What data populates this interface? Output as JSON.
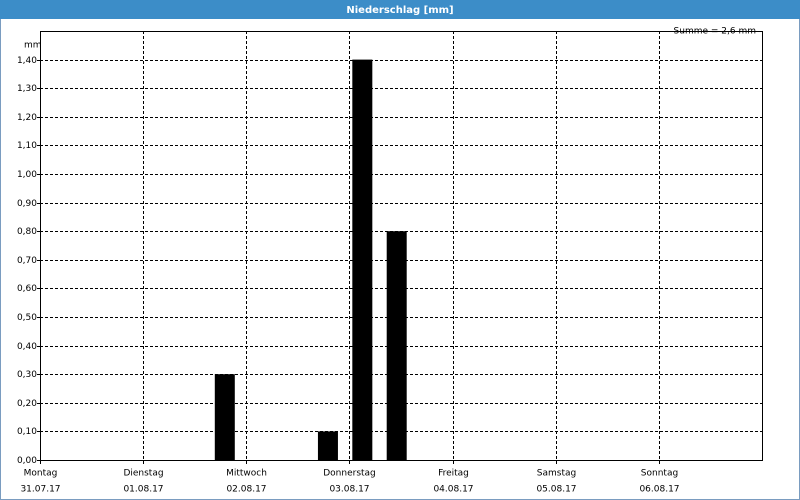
{
  "chart_data": {
    "type": "bar",
    "title": "Niederschlag [mm]",
    "y_unit": "mm",
    "annotation": "Summe = 2,6 mm",
    "x": [
      43,
      67,
      75,
      83
    ],
    "values": [
      0.3,
      0.1,
      1.4,
      0.8
    ],
    "color": "#000000",
    "xlim": [
      0,
      168
    ],
    "xticks": [
      {
        "value": 0,
        "label": "Montag"
      },
      {
        "value": 24,
        "label": "Dienstag"
      },
      {
        "value": 48,
        "label": "Mittwoch"
      },
      {
        "value": 72,
        "label": "Donnerstag"
      },
      {
        "value": 96,
        "label": "Freitag"
      },
      {
        "value": 120,
        "label": "Samstag"
      },
      {
        "value": 144,
        "label": "Sonntag"
      }
    ],
    "xtick_dates": [
      "31.07.17",
      "01.08.17",
      "02.08.17",
      "03.08.17",
      "04.08.17",
      "05.08.17",
      "06.08.17"
    ],
    "ylim": [
      0,
      1.5
    ],
    "yticks": [
      {
        "value": 0,
        "label": "0,00"
      },
      {
        "value": 0.1,
        "label": "0,10"
      },
      {
        "value": 0.2,
        "label": "0,20"
      },
      {
        "value": 0.3,
        "label": "0,30"
      },
      {
        "value": 0.4,
        "label": "0,40"
      },
      {
        "value": 0.5,
        "label": "0,50"
      },
      {
        "value": 0.6,
        "label": "0,60"
      },
      {
        "value": 0.7,
        "label": "0,70"
      },
      {
        "value": 0.8,
        "label": "0,80"
      },
      {
        "value": 0.9,
        "label": "0,90"
      },
      {
        "value": 1.0,
        "label": "1,00"
      },
      {
        "value": 1.1,
        "label": "1,10"
      },
      {
        "value": 1.2,
        "label": "1,20"
      },
      {
        "value": 1.3,
        "label": "1,30"
      },
      {
        "value": 1.4,
        "label": "1,40"
      }
    ],
    "grid": true
  }
}
